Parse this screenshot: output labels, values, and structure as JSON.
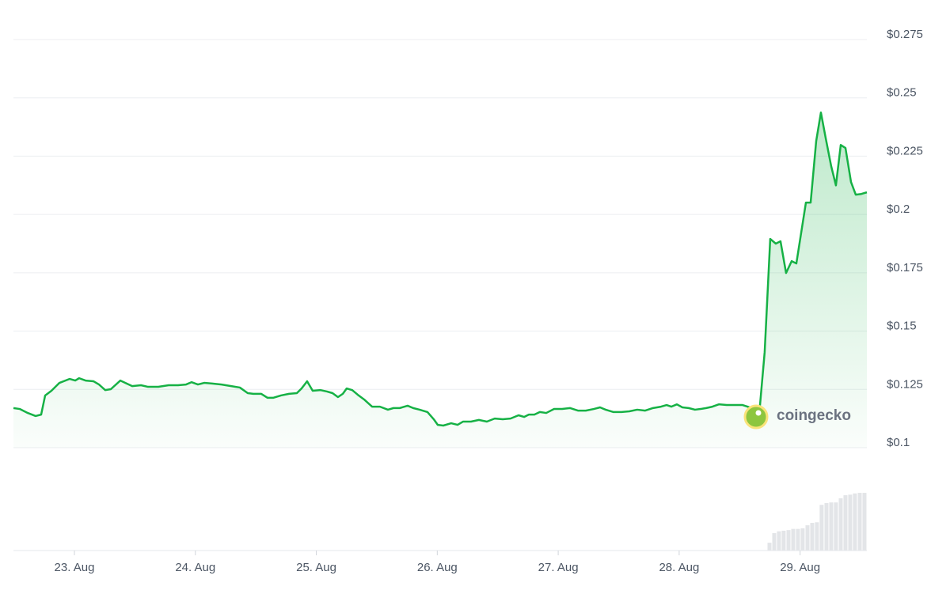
{
  "chart_data": {
    "type": "line",
    "color": "#16b145",
    "xlim": [
      22.496,
      29.552
    ],
    "ylim": [
      0.1,
      0.275
    ],
    "grid": true,
    "xticks": [
      {
        "value": 23,
        "label": "23. Aug"
      },
      {
        "value": 24,
        "label": "24. Aug"
      },
      {
        "value": 25,
        "label": "25. Aug"
      },
      {
        "value": 26,
        "label": "26. Aug"
      },
      {
        "value": 27,
        "label": "27. Aug"
      },
      {
        "value": 28,
        "label": "28. Aug"
      },
      {
        "value": 29,
        "label": "29. Aug"
      }
    ],
    "yticks": [
      {
        "value": 0.1,
        "label": "$0.1"
      },
      {
        "value": 0.125,
        "label": "$0.125"
      },
      {
        "value": 0.15,
        "label": "$0.15"
      },
      {
        "value": 0.175,
        "label": "$0.175"
      },
      {
        "value": 0.2,
        "label": "$0.2"
      },
      {
        "value": 0.225,
        "label": "$0.225"
      },
      {
        "value": 0.25,
        "label": "$0.25"
      },
      {
        "value": 0.275,
        "label": "$0.275"
      }
    ],
    "x": [
      22.496,
      22.548,
      22.614,
      22.679,
      22.725,
      22.758,
      22.81,
      22.876,
      22.961,
      23.007,
      23.039,
      23.092,
      23.157,
      23.203,
      23.255,
      23.301,
      23.38,
      23.432,
      23.478,
      23.55,
      23.609,
      23.694,
      23.779,
      23.857,
      23.923,
      23.969,
      24.021,
      24.073,
      24.139,
      24.217,
      24.296,
      24.368,
      24.433,
      24.479,
      24.545,
      24.597,
      24.643,
      24.708,
      24.774,
      24.839,
      24.878,
      24.924,
      24.97,
      25.035,
      25.088,
      25.134,
      25.179,
      25.219,
      25.251,
      25.297,
      25.343,
      25.395,
      25.461,
      25.526,
      25.592,
      25.638,
      25.69,
      25.755,
      25.801,
      25.854,
      25.919,
      25.971,
      26.004,
      26.05,
      26.115,
      26.168,
      26.214,
      26.279,
      26.344,
      26.41,
      26.475,
      26.541,
      26.606,
      26.672,
      26.718,
      26.757,
      26.803,
      26.848,
      26.901,
      26.966,
      27.032,
      27.097,
      27.163,
      27.228,
      27.294,
      27.346,
      27.392,
      27.457,
      27.523,
      27.588,
      27.653,
      27.719,
      27.784,
      27.85,
      27.896,
      27.935,
      27.981,
      28.027,
      28.079,
      28.131,
      28.177,
      28.223,
      28.275,
      28.328,
      28.393,
      28.459,
      28.524,
      28.583,
      28.635,
      28.668,
      28.707,
      28.753,
      28.799,
      28.838,
      28.884,
      28.93,
      28.969,
      29.008,
      29.048,
      29.087,
      29.133,
      29.172,
      29.211,
      29.257,
      29.296,
      29.336,
      29.375,
      29.421,
      29.46,
      29.506,
      29.552
    ],
    "values": [
      0.117,
      0.1166,
      0.1149,
      0.1136,
      0.1142,
      0.1224,
      0.1244,
      0.1278,
      0.1295,
      0.1288,
      0.1298,
      0.1288,
      0.1285,
      0.1271,
      0.1247,
      0.1251,
      0.1288,
      0.1275,
      0.1264,
      0.1268,
      0.1261,
      0.1261,
      0.1268,
      0.1268,
      0.1271,
      0.1281,
      0.1271,
      0.1278,
      0.1275,
      0.1271,
      0.1264,
      0.1258,
      0.1234,
      0.1231,
      0.1231,
      0.1214,
      0.1214,
      0.1224,
      0.1231,
      0.1234,
      0.1254,
      0.1285,
      0.1244,
      0.1247,
      0.1241,
      0.1234,
      0.1217,
      0.1231,
      0.1254,
      0.1247,
      0.1227,
      0.1207,
      0.1176,
      0.1176,
      0.1163,
      0.117,
      0.117,
      0.118,
      0.117,
      0.1163,
      0.1153,
      0.1122,
      0.1098,
      0.1095,
      0.1105,
      0.1098,
      0.1112,
      0.1112,
      0.1119,
      0.1112,
      0.1125,
      0.1122,
      0.1125,
      0.1139,
      0.1132,
      0.1142,
      0.1142,
      0.1153,
      0.1149,
      0.1166,
      0.1166,
      0.117,
      0.1159,
      0.1159,
      0.1166,
      0.1173,
      0.1163,
      0.1153,
      0.1153,
      0.1156,
      0.1163,
      0.1159,
      0.117,
      0.1176,
      0.1183,
      0.1176,
      0.1186,
      0.1173,
      0.117,
      0.1163,
      0.1166,
      0.117,
      0.1176,
      0.1186,
      0.1183,
      0.1183,
      0.1183,
      0.1173,
      0.1173,
      0.118,
      0.141,
      0.1895,
      0.1875,
      0.1885,
      0.1749,
      0.18,
      0.179,
      0.1919,
      0.2051,
      0.2051,
      0.2315,
      0.2437,
      0.2329,
      0.2207,
      0.2125,
      0.2298,
      0.2285,
      0.2139,
      0.2085,
      0.2088,
      0.2095
    ],
    "volume": {
      "type": "bar",
      "color": "#e3e5e8",
      "ylim": [
        0,
        100
      ],
      "x": [
        28.747,
        28.786,
        28.825,
        28.864,
        28.904,
        28.943,
        28.982,
        29.021,
        29.061,
        29.1,
        29.139,
        29.178,
        29.218,
        29.257,
        29.296,
        29.336,
        29.375,
        29.414,
        29.453,
        29.493,
        29.532
      ],
      "values": [
        13,
        29,
        32,
        33,
        34,
        36,
        36,
        37,
        42,
        46,
        47,
        76,
        79,
        80,
        80,
        87,
        92,
        93,
        95,
        96,
        96
      ]
    },
    "watermark": "coingecko"
  }
}
